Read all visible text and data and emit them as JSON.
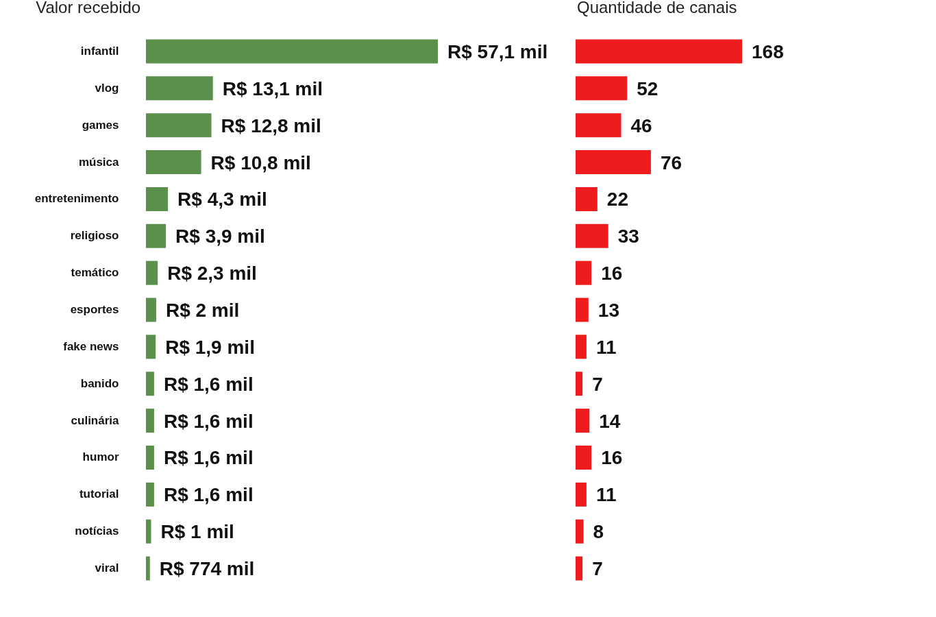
{
  "chart_data": [
    {
      "type": "bar",
      "orientation": "horizontal",
      "title": "Valor recebido",
      "categories": [
        "infantil",
        "vlog",
        "games",
        "música",
        "entretenimento",
        "religioso",
        "temático",
        "esportes",
        "fake news",
        "banido",
        "culinária",
        "humor",
        "tutorial",
        "notícias",
        "viral"
      ],
      "values": [
        57.1,
        13.1,
        12.8,
        10.8,
        4.3,
        3.9,
        2.3,
        2,
        1.9,
        1.6,
        1.6,
        1.6,
        1.6,
        1,
        0.774
      ],
      "value_labels": [
        "R$ 57,1 mil",
        "R$ 13,1 mil",
        "R$ 12,8 mil",
        "R$ 10,8 mil",
        "R$ 4,3 mil",
        "R$ 3,9 mil",
        "R$ 2,3 mil",
        "R$ 2 mil",
        "R$ 1,9 mil",
        "R$ 1,6 mil",
        "R$ 1,6 mil",
        "R$ 1,6 mil",
        "R$ 1,6 mil",
        "R$ 1 mil",
        "R$ 774 mil"
      ],
      "color": "#5b8f4c",
      "tick_labels": "y"
    },
    {
      "type": "bar",
      "orientation": "horizontal",
      "title": "Quantidade de canais",
      "categories": [
        null,
        null,
        null,
        null,
        null,
        null,
        null,
        null,
        null,
        null,
        null,
        null,
        null,
        null,
        null
      ],
      "values": [
        168,
        52,
        46,
        76,
        22,
        33,
        16,
        13,
        11,
        7,
        14,
        16,
        11,
        8,
        7
      ],
      "data_labels": true,
      "color": "#ee1c1c",
      "tick_labels": false
    }
  ]
}
